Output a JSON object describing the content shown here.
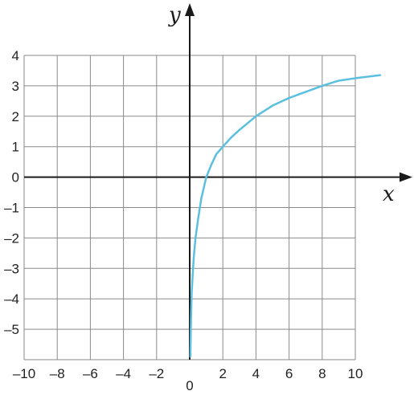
{
  "chart_data": {
    "type": "line",
    "xlabel": "x",
    "ylabel": "y",
    "xlim": [
      -10,
      10
    ],
    "ylim": [
      -6,
      4
    ],
    "grid": true,
    "x_tick_labels": [
      "–10",
      "–8",
      "–6",
      "–4",
      "–2",
      "0",
      "2",
      "4",
      "6",
      "8",
      "10"
    ],
    "y_tick_labels": [
      "4",
      "3",
      "2",
      "1",
      "0",
      "–1",
      "–2",
      "–3",
      "–4",
      "–5"
    ],
    "series": [
      {
        "color": "#5bc0e0",
        "x": [
          0.04,
          0.08,
          0.12,
          0.18,
          0.25,
          0.35,
          0.5,
          0.7,
          1,
          1.3,
          1.6,
          2,
          2.5,
          3,
          4,
          5,
          6,
          7,
          8,
          9,
          10,
          11.5
        ],
        "y": [
          -5.9,
          -4.6,
          -3.8,
          -3.2,
          -2.6,
          -2.0,
          -1.4,
          -0.7,
          0,
          0.4,
          0.75,
          1,
          1.3,
          1.55,
          2,
          2.35,
          2.6,
          2.8,
          3,
          3.17,
          3.25,
          3.35
        ]
      }
    ]
  }
}
